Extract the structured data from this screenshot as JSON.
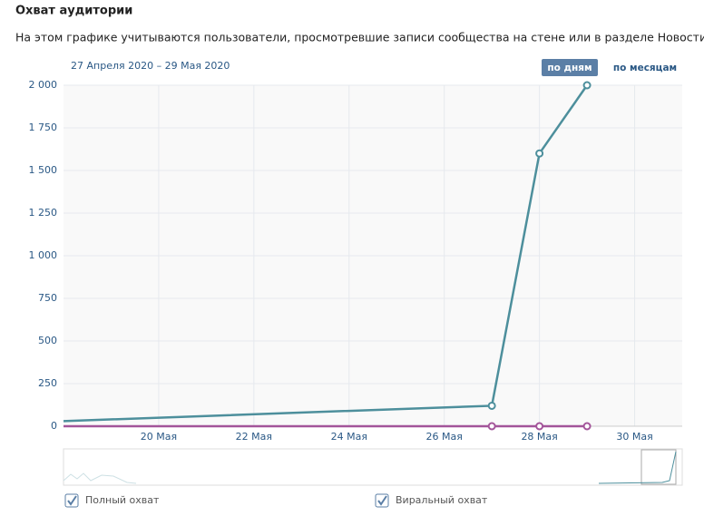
{
  "chart_data": {
    "type": "line",
    "title": "Охват аудитории",
    "subtitle": "На этом графике учитываются пользователи, просмотревшие записи сообщества на стене или в разделе Новости.",
    "date_range": "27 Апреля 2020 – 29 Мая 2020",
    "buttons": [
      "по дням",
      "по месяцам"
    ],
    "x": [
      18,
      27,
      28,
      29
    ],
    "xlim": [
      18,
      31
    ],
    "xticks": [
      {
        "value": 20,
        "label": "20 Мая"
      },
      {
        "value": 22,
        "label": "22 Мая"
      },
      {
        "value": 24,
        "label": "24 Мая"
      },
      {
        "value": 26,
        "label": "26 Мая"
      },
      {
        "value": 28,
        "label": "28 Мая"
      },
      {
        "value": 30,
        "label": "30 Мая"
      }
    ],
    "ylim": [
      0,
      2000
    ],
    "yticks": [
      0,
      250,
      500,
      750,
      {
        "value": 1000,
        "label": "1 000"
      },
      {
        "value": 1250,
        "label": "1 250"
      },
      {
        "value": 1500,
        "label": "1 500"
      },
      {
        "value": 1750,
        "label": "1 750"
      },
      {
        "value": 2000,
        "label": "2 000"
      }
    ],
    "grid": true,
    "series": [
      {
        "name": "Полный охват",
        "color": "#4d8f9c",
        "values": [
          30,
          120,
          1600,
          2000
        ]
      },
      {
        "name": "Виральный охват",
        "color": "#a3559a",
        "values": [
          0,
          0,
          0,
          0
        ]
      }
    ]
  }
}
